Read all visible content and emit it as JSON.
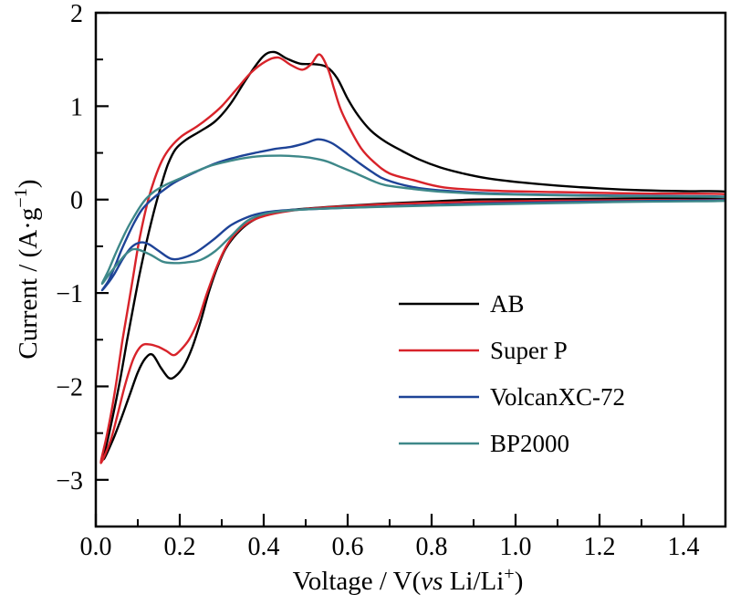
{
  "chart_data": {
    "type": "line",
    "subtype": "cyclic-voltammogram",
    "title": "",
    "xlabel_text": "Voltage / V(vs Li/Li+)",
    "ylabel_text": "Current / (A·g−1)",
    "xlabel_parts": [
      {
        "text": "Voltage / V("
      },
      {
        "text": "vs",
        "style": "italic"
      },
      {
        "text": " Li/Li"
      },
      {
        "text": "+",
        "style": "sup"
      },
      {
        "text": ")"
      }
    ],
    "ylabel_parts": [
      {
        "text": "Current / (A·g"
      },
      {
        "text": "−1",
        "style": "sup"
      },
      {
        "text": ")"
      }
    ],
    "xlim": [
      0,
      1.5
    ],
    "ylim": [
      -3.5,
      2
    ],
    "grid": false,
    "legend_position": "inside-right-middle",
    "x_axis": {
      "major_ticks": [
        0.0,
        0.2,
        0.4,
        0.6,
        0.8,
        1.0,
        1.2,
        1.4
      ],
      "major_labels": [
        "0.0",
        "0.2",
        "0.4",
        "0.6",
        "0.8",
        "1.0",
        "1.2",
        "1.4"
      ],
      "minor_ticks": [
        0.1,
        0.3,
        0.5,
        0.7,
        0.9,
        1.1,
        1.3
      ]
    },
    "y_axis": {
      "major_ticks": [
        2,
        1,
        0,
        -1,
        -2,
        -3
      ],
      "major_labels": [
        "2",
        "1",
        "0",
        "−1",
        "−2",
        "−3"
      ],
      "minor_ticks": [
        1.5,
        0.5,
        -0.5,
        -1.5,
        -2.5,
        -3.5
      ]
    },
    "legend": {
      "items": [
        {
          "label": "AB",
          "color": "#000000"
        },
        {
          "label": "Super P",
          "color": "#d8232a"
        },
        {
          "label": "VolcanXC-72",
          "color": "#1e4397"
        },
        {
          "label": "BP2000",
          "color": "#3e8889"
        }
      ]
    },
    "series": [
      {
        "name": "AB",
        "color": "#000000",
        "anodic": [
          [
            0.018,
            -2.78
          ],
          [
            0.032,
            -2.5
          ],
          [
            0.046,
            -2.2
          ],
          [
            0.06,
            -1.88
          ],
          [
            0.074,
            -1.52
          ],
          [
            0.088,
            -1.18
          ],
          [
            0.102,
            -0.85
          ],
          [
            0.116,
            -0.55
          ],
          [
            0.13,
            -0.28
          ],
          [
            0.143,
            -0.05
          ],
          [
            0.157,
            0.17
          ],
          [
            0.172,
            0.38
          ],
          [
            0.19,
            0.54
          ],
          [
            0.215,
            0.64
          ],
          [
            0.248,
            0.73
          ],
          [
            0.285,
            0.84
          ],
          [
            0.32,
            1.02
          ],
          [
            0.36,
            1.3
          ],
          [
            0.398,
            1.53
          ],
          [
            0.425,
            1.58
          ],
          [
            0.455,
            1.51
          ],
          [
            0.487,
            1.455
          ],
          [
            0.52,
            1.45
          ],
          [
            0.55,
            1.42
          ],
          [
            0.575,
            1.3
          ],
          [
            0.6,
            1.08
          ],
          [
            0.625,
            0.9
          ],
          [
            0.655,
            0.74
          ],
          [
            0.69,
            0.62
          ],
          [
            0.73,
            0.52
          ],
          [
            0.77,
            0.43
          ],
          [
            0.82,
            0.345
          ],
          [
            0.87,
            0.285
          ],
          [
            0.93,
            0.23
          ],
          [
            1.0,
            0.19
          ],
          [
            1.1,
            0.15
          ],
          [
            1.2,
            0.12
          ],
          [
            1.3,
            0.1
          ],
          [
            1.4,
            0.09
          ],
          [
            1.5,
            0.085
          ]
        ],
        "cathodic": [
          [
            1.5,
            0.02
          ],
          [
            1.35,
            0.015
          ],
          [
            1.2,
            0.01
          ],
          [
            1.05,
            0.005
          ],
          [
            0.9,
            0.0
          ],
          [
            0.8,
            -0.02
          ],
          [
            0.7,
            -0.04
          ],
          [
            0.6,
            -0.065
          ],
          [
            0.52,
            -0.09
          ],
          [
            0.45,
            -0.12
          ],
          [
            0.4,
            -0.17
          ],
          [
            0.365,
            -0.25
          ],
          [
            0.335,
            -0.37
          ],
          [
            0.31,
            -0.52
          ],
          [
            0.29,
            -0.72
          ],
          [
            0.27,
            -0.98
          ],
          [
            0.25,
            -1.3
          ],
          [
            0.23,
            -1.58
          ],
          [
            0.21,
            -1.78
          ],
          [
            0.19,
            -1.89
          ],
          [
            0.174,
            -1.91
          ],
          [
            0.155,
            -1.8
          ],
          [
            0.135,
            -1.66
          ],
          [
            0.118,
            -1.7
          ],
          [
            0.1,
            -1.85
          ],
          [
            0.08,
            -2.1
          ],
          [
            0.06,
            -2.35
          ],
          [
            0.04,
            -2.58
          ],
          [
            0.018,
            -2.78
          ]
        ]
      },
      {
        "name": "Super P",
        "color": "#d8232a",
        "anodic": [
          [
            0.012,
            -2.82
          ],
          [
            0.025,
            -2.55
          ],
          [
            0.038,
            -2.25
          ],
          [
            0.05,
            -1.92
          ],
          [
            0.062,
            -1.55
          ],
          [
            0.075,
            -1.2
          ],
          [
            0.088,
            -0.85
          ],
          [
            0.1,
            -0.52
          ],
          [
            0.112,
            -0.25
          ],
          [
            0.125,
            0.0
          ],
          [
            0.14,
            0.22
          ],
          [
            0.158,
            0.42
          ],
          [
            0.178,
            0.56
          ],
          [
            0.205,
            0.68
          ],
          [
            0.24,
            0.78
          ],
          [
            0.27,
            0.88
          ],
          [
            0.3,
            1.0
          ],
          [
            0.335,
            1.18
          ],
          [
            0.37,
            1.36
          ],
          [
            0.405,
            1.48
          ],
          [
            0.435,
            1.52
          ],
          [
            0.465,
            1.44
          ],
          [
            0.492,
            1.39
          ],
          [
            0.513,
            1.45
          ],
          [
            0.533,
            1.555
          ],
          [
            0.553,
            1.4
          ],
          [
            0.568,
            1.18
          ],
          [
            0.583,
            0.97
          ],
          [
            0.604,
            0.77
          ],
          [
            0.632,
            0.55
          ],
          [
            0.663,
            0.4
          ],
          [
            0.7,
            0.28
          ],
          [
            0.755,
            0.21
          ],
          [
            0.83,
            0.13
          ],
          [
            0.95,
            0.095
          ],
          [
            1.1,
            0.08
          ],
          [
            1.3,
            0.065
          ],
          [
            1.5,
            0.058
          ]
        ],
        "cathodic": [
          [
            1.5,
            0.0
          ],
          [
            1.3,
            -0.005
          ],
          [
            1.1,
            -0.012
          ],
          [
            0.95,
            -0.02
          ],
          [
            0.82,
            -0.032
          ],
          [
            0.7,
            -0.048
          ],
          [
            0.6,
            -0.07
          ],
          [
            0.5,
            -0.1
          ],
          [
            0.43,
            -0.145
          ],
          [
            0.38,
            -0.21
          ],
          [
            0.345,
            -0.31
          ],
          [
            0.315,
            -0.47
          ],
          [
            0.29,
            -0.7
          ],
          [
            0.265,
            -1.0
          ],
          [
            0.243,
            -1.3
          ],
          [
            0.222,
            -1.5
          ],
          [
            0.2,
            -1.62
          ],
          [
            0.185,
            -1.665
          ],
          [
            0.168,
            -1.62
          ],
          [
            0.148,
            -1.575
          ],
          [
            0.128,
            -1.55
          ],
          [
            0.109,
            -1.565
          ],
          [
            0.09,
            -1.7
          ],
          [
            0.07,
            -1.98
          ],
          [
            0.052,
            -2.3
          ],
          [
            0.035,
            -2.58
          ],
          [
            0.012,
            -2.82
          ]
        ]
      },
      {
        "name": "VolcanXC-72",
        "color": "#1e4397",
        "anodic": [
          [
            0.015,
            -0.97
          ],
          [
            0.03,
            -0.87
          ],
          [
            0.045,
            -0.72
          ],
          [
            0.06,
            -0.55
          ],
          [
            0.075,
            -0.4
          ],
          [
            0.09,
            -0.26
          ],
          [
            0.108,
            -0.12
          ],
          [
            0.128,
            -0.02
          ],
          [
            0.155,
            0.08
          ],
          [
            0.19,
            0.19
          ],
          [
            0.24,
            0.3
          ],
          [
            0.29,
            0.395
          ],
          [
            0.34,
            0.46
          ],
          [
            0.39,
            0.51
          ],
          [
            0.43,
            0.545
          ],
          [
            0.465,
            0.565
          ],
          [
            0.5,
            0.605
          ],
          [
            0.53,
            0.645
          ],
          [
            0.56,
            0.61
          ],
          [
            0.59,
            0.52
          ],
          [
            0.625,
            0.4
          ],
          [
            0.66,
            0.29
          ],
          [
            0.69,
            0.215
          ],
          [
            0.755,
            0.135
          ],
          [
            0.83,
            0.095
          ],
          [
            0.95,
            0.065
          ],
          [
            1.1,
            0.05
          ],
          [
            1.3,
            0.04
          ],
          [
            1.5,
            0.032
          ]
        ],
        "cathodic": [
          [
            1.5,
            -0.005
          ],
          [
            1.3,
            -0.015
          ],
          [
            1.1,
            -0.028
          ],
          [
            0.95,
            -0.04
          ],
          [
            0.82,
            -0.055
          ],
          [
            0.7,
            -0.07
          ],
          [
            0.6,
            -0.088
          ],
          [
            0.52,
            -0.1
          ],
          [
            0.45,
            -0.115
          ],
          [
            0.4,
            -0.14
          ],
          [
            0.36,
            -0.19
          ],
          [
            0.32,
            -0.28
          ],
          [
            0.28,
            -0.43
          ],
          [
            0.24,
            -0.56
          ],
          [
            0.21,
            -0.62
          ],
          [
            0.18,
            -0.635
          ],
          [
            0.15,
            -0.55
          ],
          [
            0.125,
            -0.475
          ],
          [
            0.105,
            -0.46
          ],
          [
            0.085,
            -0.51
          ],
          [
            0.065,
            -0.63
          ],
          [
            0.045,
            -0.79
          ],
          [
            0.03,
            -0.89
          ],
          [
            0.015,
            -0.97
          ]
        ]
      },
      {
        "name": "BP2000",
        "color": "#3e8889",
        "anodic": [
          [
            0.015,
            -0.9
          ],
          [
            0.03,
            -0.76
          ],
          [
            0.045,
            -0.6
          ],
          [
            0.06,
            -0.45
          ],
          [
            0.075,
            -0.31
          ],
          [
            0.09,
            -0.19
          ],
          [
            0.105,
            -0.08
          ],
          [
            0.12,
            0.01
          ],
          [
            0.14,
            0.09
          ],
          [
            0.165,
            0.155
          ],
          [
            0.195,
            0.215
          ],
          [
            0.235,
            0.295
          ],
          [
            0.275,
            0.365
          ],
          [
            0.315,
            0.41
          ],
          [
            0.355,
            0.445
          ],
          [
            0.395,
            0.465
          ],
          [
            0.44,
            0.47
          ],
          [
            0.48,
            0.462
          ],
          [
            0.515,
            0.445
          ],
          [
            0.55,
            0.41
          ],
          [
            0.585,
            0.345
          ],
          [
            0.625,
            0.27
          ],
          [
            0.66,
            0.2
          ],
          [
            0.69,
            0.155
          ],
          [
            0.755,
            0.115
          ],
          [
            0.83,
            0.082
          ],
          [
            0.95,
            0.058
          ],
          [
            1.1,
            0.045
          ],
          [
            1.3,
            0.035
          ],
          [
            1.5,
            0.028
          ]
        ],
        "cathodic": [
          [
            1.5,
            -0.012
          ],
          [
            1.3,
            -0.022
          ],
          [
            1.1,
            -0.038
          ],
          [
            0.95,
            -0.05
          ],
          [
            0.82,
            -0.062
          ],
          [
            0.7,
            -0.075
          ],
          [
            0.6,
            -0.088
          ],
          [
            0.5,
            -0.105
          ],
          [
            0.44,
            -0.125
          ],
          [
            0.4,
            -0.155
          ],
          [
            0.36,
            -0.23
          ],
          [
            0.32,
            -0.4
          ],
          [
            0.285,
            -0.55
          ],
          [
            0.25,
            -0.645
          ],
          [
            0.22,
            -0.67
          ],
          [
            0.19,
            -0.68
          ],
          [
            0.16,
            -0.665
          ],
          [
            0.13,
            -0.59
          ],
          [
            0.095,
            -0.53
          ],
          [
            0.075,
            -0.57
          ],
          [
            0.055,
            -0.67
          ],
          [
            0.035,
            -0.78
          ],
          [
            0.015,
            -0.9
          ]
        ]
      }
    ]
  }
}
